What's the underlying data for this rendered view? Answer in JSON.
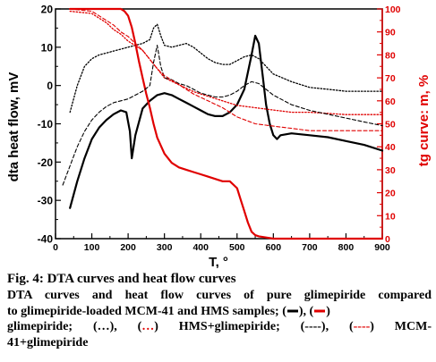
{
  "chart_data": {
    "type": "line",
    "title": "",
    "xlabel": "T, °",
    "ylabel_left": "dta heat flow, mV",
    "ylabel_right": "tg curve: m, %",
    "xlim": [
      0,
      900
    ],
    "ylim_left": [
      -40,
      20
    ],
    "ylim_right": [
      0,
      100
    ],
    "x_ticks": [
      "0",
      "100",
      "200",
      "300",
      "400",
      "500",
      "600",
      "700",
      "800",
      "900"
    ],
    "y_left_ticks": [
      "-40",
      "-30",
      "-20",
      "-10",
      "0",
      "10",
      "20"
    ],
    "y_right_ticks": [
      "0",
      "10",
      "20",
      "30",
      "40",
      "50",
      "60",
      "70",
      "80",
      "90",
      "100"
    ],
    "grid": false,
    "series": [
      {
        "name": "glimepiride",
        "axis": "left",
        "color": "#000000",
        "style": "solid",
        "width": 2.2,
        "x": [
          40,
          60,
          80,
          100,
          120,
          140,
          160,
          180,
          195,
          205,
          210,
          220,
          240,
          260,
          280,
          300,
          320,
          340,
          360,
          380,
          400,
          420,
          440,
          460,
          480,
          500,
          520,
          540,
          550,
          560,
          570,
          580,
          590,
          600,
          610,
          620,
          650,
          700,
          750,
          800,
          850,
          900
        ],
        "y": [
          -32,
          -25,
          -19,
          -14,
          -11,
          -9,
          -7.5,
          -6.5,
          -7,
          -12,
          -19,
          -13,
          -6,
          -4,
          -2.5,
          -2,
          -2.5,
          -3.5,
          -4.5,
          -5.5,
          -6.5,
          -7.5,
          -8,
          -8,
          -7,
          -5,
          -1,
          8,
          13,
          11,
          3,
          -5,
          -10,
          -13,
          -14,
          -13,
          -12.5,
          -13,
          -13.5,
          -14.5,
          -15.5,
          -17
        ]
      },
      {
        "name": "glimepiride",
        "axis": "right",
        "color": "#e00000",
        "style": "solid",
        "width": 2.2,
        "x": [
          40,
          100,
          150,
          180,
          190,
          200,
          210,
          220,
          230,
          240,
          250,
          260,
          270,
          280,
          300,
          320,
          340,
          360,
          380,
          400,
          420,
          440,
          460,
          480,
          500,
          510,
          520,
          530,
          540,
          550,
          560,
          580,
          600,
          700,
          800,
          900
        ],
        "y": [
          100,
          100,
          100,
          100,
          99,
          97,
          92,
          85,
          77,
          70,
          63,
          57,
          50,
          44,
          37,
          33,
          31,
          30,
          29,
          28,
          27,
          26,
          25,
          25,
          22,
          17,
          12,
          7,
          3,
          1.5,
          1,
          0.5,
          0,
          0,
          0,
          0
        ]
      },
      {
        "name": "HMS+glimepiride",
        "axis": "left",
        "color": "#000000",
        "style": "dotted",
        "width": 1.3,
        "x": [
          40,
          60,
          80,
          100,
          120,
          140,
          160,
          180,
          200,
          220,
          240,
          260,
          270,
          280,
          290,
          300,
          320,
          340,
          360,
          380,
          400,
          420,
          440,
          460,
          480,
          500,
          520,
          540,
          560,
          580,
          600,
          650,
          700,
          750,
          800,
          850,
          900
        ],
        "y": [
          -7,
          0,
          5,
          7,
          8,
          8.5,
          9,
          9.5,
          10,
          10.5,
          11,
          12,
          15,
          16,
          13,
          10.5,
          10,
          10.5,
          11,
          10,
          8.5,
          7,
          6,
          5.5,
          5.5,
          6.5,
          7.5,
          8,
          7,
          5,
          3,
          1,
          -0.5,
          -1,
          -1.5,
          -1.5,
          -1.5
        ]
      },
      {
        "name": "HMS+glimepiride",
        "axis": "right",
        "color": "#e00000",
        "style": "dotted",
        "width": 1.3,
        "x": [
          40,
          100,
          120,
          140,
          160,
          180,
          200,
          220,
          240,
          260,
          280,
          300,
          340,
          380,
          420,
          460,
          500,
          550,
          600,
          650,
          700,
          800,
          900
        ],
        "y": [
          99,
          98,
          96,
          94,
          91,
          89,
          86,
          84,
          82,
          78,
          74,
          70,
          67,
          64,
          62,
          60,
          58,
          57,
          56,
          55,
          55,
          54,
          54
        ]
      },
      {
        "name": "MCM-41+glimepiride",
        "axis": "left",
        "color": "#000000",
        "style": "dashed",
        "width": 1.1,
        "x": [
          20,
          40,
          60,
          80,
          100,
          120,
          140,
          160,
          180,
          200,
          220,
          240,
          260,
          270,
          280,
          290,
          300,
          320,
          340,
          360,
          380,
          400,
          420,
          440,
          460,
          480,
          500,
          520,
          540,
          560,
          580,
          600,
          650,
          700,
          750,
          800,
          850,
          900
        ],
        "y": [
          -26,
          -21,
          -16,
          -12,
          -9,
          -7,
          -5.5,
          -4.5,
          -4,
          -3.5,
          -2.5,
          -1.5,
          0,
          6,
          10.5,
          5,
          2,
          1.5,
          0.5,
          0,
          -1,
          -2,
          -2.5,
          -3,
          -3,
          -2.5,
          -1.5,
          0,
          1,
          0.5,
          -1,
          -2.5,
          -5,
          -6.5,
          -7.5,
          -8.5,
          -9.5,
          -10.5
        ]
      },
      {
        "name": "MCM-41+glimepiride",
        "axis": "right",
        "color": "#e00000",
        "style": "dashed",
        "width": 1.1,
        "x": [
          40,
          100,
          120,
          140,
          160,
          180,
          200,
          220,
          240,
          260,
          280,
          300,
          340,
          380,
          420,
          460,
          500,
          550,
          600,
          650,
          700,
          800,
          900
        ],
        "y": [
          100,
          99,
          97,
          95,
          93,
          90,
          88,
          85,
          82,
          78,
          74,
          71,
          67,
          63,
          60,
          57,
          53,
          50,
          49,
          48,
          47,
          47,
          47
        ]
      }
    ]
  },
  "caption": {
    "title": "Fig. 4: DTA curves and heat flow curves",
    "line1": "DTA curves and heat flow curves of pure glimepiride compared",
    "line2": "to glimepiride-loaded MCM-41 and HMS samples; (",
    "line2b": "), (",
    "line2c": ")",
    "line3a": "glimepiride; (…), (",
    "line3b": "…",
    "line3c": ") HMS+glimepiride; (----), (",
    "line3d": "----",
    "line3e": ") MCM-",
    "line4": "41+glimepiride"
  }
}
